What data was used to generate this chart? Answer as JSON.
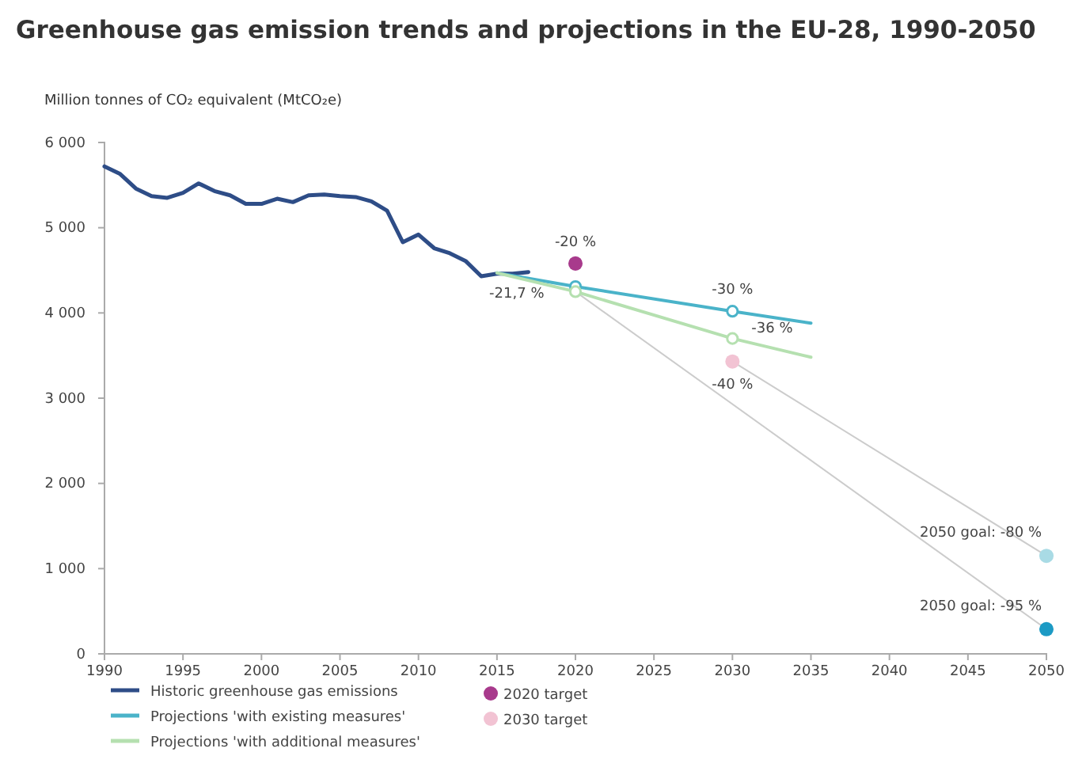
{
  "chart_data": {
    "type": "line",
    "title": "Greenhouse gas emission trends and projections in the EU-28, 1990-2050",
    "ylabel": "Million tonnes of CO₂ equivalent (MtCO₂e)",
    "xlim": [
      1990,
      2050
    ],
    "xticks": [
      1990,
      1995,
      2000,
      2005,
      2010,
      2015,
      2020,
      2025,
      2030,
      2035,
      2040,
      2045,
      2050
    ],
    "ylim": [
      0,
      6000
    ],
    "yticks": [
      {
        "value": 0,
        "label": "0"
      },
      {
        "value": 1000,
        "label": "1 000"
      },
      {
        "value": 2000,
        "label": "2 000"
      },
      {
        "value": 3000,
        "label": "3 000"
      },
      {
        "value": 4000,
        "label": "4 000"
      },
      {
        "value": 5000,
        "label": "5 000"
      },
      {
        "value": 6000,
        "label": "6 000"
      }
    ],
    "grid": false,
    "legend": "bottom",
    "marker": "none",
    "line_style": "solid",
    "series": [
      {
        "name": "Historic greenhouse gas emissions",
        "color": "#2e4d87",
        "x": [
          1990,
          1991,
          1992,
          1993,
          1994,
          1995,
          1996,
          1997,
          1998,
          1999,
          2000,
          2001,
          2002,
          2003,
          2004,
          2005,
          2006,
          2007,
          2008,
          2009,
          2010,
          2011,
          2012,
          2013,
          2014,
          2015,
          2016,
          2017
        ],
        "values": [
          5720,
          5630,
          5460,
          5370,
          5350,
          5410,
          5520,
          5430,
          5380,
          5280,
          5280,
          5340,
          5300,
          5380,
          5390,
          5370,
          5360,
          5310,
          5200,
          4830,
          4920,
          4760,
          4700,
          4610,
          4430,
          4460,
          4460,
          4480
        ]
      },
      {
        "name": "Projections 'with existing measures'",
        "color": "#4ab3c9",
        "x": [
          2015,
          2020,
          2030,
          2035
        ],
        "values": [
          4470,
          4310,
          4020,
          3880
        ]
      },
      {
        "name": "Projections 'with additional measures'",
        "color": "#b5e0b0",
        "x": [
          2015,
          2020,
          2030,
          2035
        ],
        "values": [
          4470,
          4250,
          3700,
          3480
        ]
      },
      {
        "name": "2020 target",
        "type": "scatter",
        "marker": "circle",
        "color": "#a83a8c",
        "x": [
          2020
        ],
        "values": [
          4580
        ]
      },
      {
        "name": "2030 target",
        "type": "scatter",
        "marker": "circle",
        "color": "#f2c3d3",
        "x": [
          2030
        ],
        "values": [
          3430
        ]
      },
      {
        "color": "#cccccc",
        "x": [
          2020,
          2050
        ],
        "values": [
          4250,
          290
        ]
      },
      {
        "color": "#cccccc",
        "x": [
          2030,
          2050
        ],
        "values": [
          3430,
          1150
        ]
      },
      {
        "type": "scatter",
        "marker": "circle",
        "color": "#4ab3c9",
        "x": [
          2020,
          2030
        ],
        "values": [
          4310,
          4020
        ]
      },
      {
        "type": "scatter",
        "marker": "circle",
        "color": "#b5e0b0",
        "x": [
          2020,
          2030
        ],
        "values": [
          4250,
          3700
        ]
      },
      {
        "type": "scatter",
        "marker": "circle",
        "color": "#a9dbe5",
        "x": [
          2050
        ],
        "values": [
          1150
        ]
      },
      {
        "type": "scatter",
        "marker": "circle",
        "color": "#1c9ac4",
        "x": [
          2050
        ],
        "values": [
          290
        ]
      }
    ],
    "annotations": [
      {
        "text": "-21,7 %",
        "x": 2017,
        "y": 4480
      },
      {
        "text": "-20 %",
        "x": 2020,
        "y": 4580
      },
      {
        "text": "-30 %",
        "x": 2030,
        "y": 4020
      },
      {
        "text": "-36 %",
        "x": 2030,
        "y": 3700
      },
      {
        "text": "-40 %",
        "x": 2030,
        "y": 3430
      },
      {
        "text": "2050 goal: -80 %",
        "x": 2050,
        "y": 1150
      },
      {
        "text": "2050 goal: -95 %",
        "x": 2050,
        "y": 290
      }
    ]
  }
}
